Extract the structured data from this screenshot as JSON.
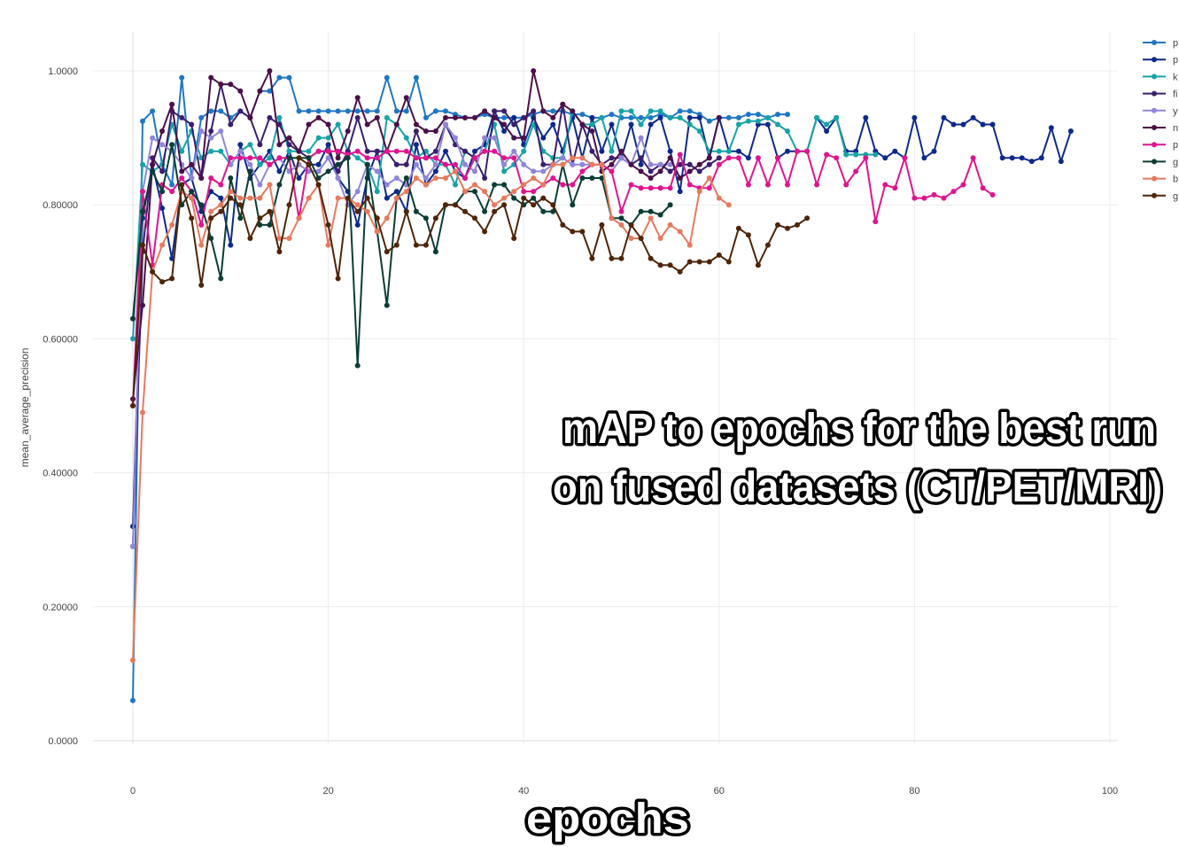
{
  "overlay": {
    "title_line1": "mAP to epochs for the best run",
    "title_line2": "on fused datasets (CT/PET/MRI)",
    "xlabel": "epochs"
  },
  "chart_data": {
    "type": "line",
    "xlabel": "epochs",
    "ylabel": "mean_average_precision",
    "xlim": [
      -4,
      100.5
    ],
    "ylim": [
      -0.06,
      1.06
    ],
    "x_ticks": [
      0,
      20,
      40,
      60,
      80,
      100
    ],
    "y_ticks": [
      0,
      0.2,
      0.4,
      0.6,
      0.8,
      1.0
    ],
    "y_tick_labels": [
      "0.0000",
      "0.20000",
      "0.40000",
      "0.60000",
      "0.80000",
      "1.0000"
    ],
    "grid": true,
    "legend_position": "top-right",
    "series": [
      {
        "name": "p",
        "color": "#1f77c4",
        "values": [
          0.06,
          0.925,
          0.94,
          0.86,
          0.83,
          0.99,
          0.84,
          0.93,
          0.94,
          0.94,
          0.93,
          0.94,
          0.93,
          0.97,
          0.97,
          0.99,
          0.99,
          0.94,
          0.94,
          0.94,
          0.94,
          0.94,
          0.94,
          0.94,
          0.94,
          0.94,
          0.99,
          0.94,
          0.94,
          0.99,
          0.93,
          0.94,
          0.94,
          0.935,
          0.93,
          0.93,
          0.935,
          0.93,
          0.93,
          0.93,
          0.93,
          0.935,
          0.94,
          0.94,
          0.94,
          0.935,
          0.935,
          0.93,
          0.93,
          0.935,
          0.93,
          0.93,
          0.93,
          0.93,
          0.935,
          0.93,
          0.94,
          0.94,
          0.935,
          0.925,
          0.93,
          0.93,
          0.93,
          0.935,
          0.935,
          0.93,
          0.935,
          0.935
        ]
      },
      {
        "name": "p",
        "color": "#0c2a8a",
        "values": [
          0.32,
          0.78,
          0.86,
          0.795,
          0.72,
          0.83,
          0.84,
          0.79,
          0.82,
          0.81,
          0.74,
          0.89,
          0.84,
          0.86,
          0.88,
          0.85,
          0.88,
          0.84,
          0.86,
          0.86,
          0.89,
          0.84,
          0.82,
          0.77,
          0.84,
          0.88,
          0.81,
          0.82,
          0.79,
          0.89,
          0.83,
          0.85,
          0.88,
          0.85,
          0.84,
          0.88,
          0.89,
          0.94,
          0.91,
          0.93,
          0.89,
          0.93,
          0.9,
          0.92,
          0.88,
          0.93,
          0.87,
          0.93,
          0.88,
          0.92,
          0.87,
          0.92,
          0.86,
          0.92,
          0.93,
          0.88,
          0.82,
          0.93,
          0.93,
          0.87,
          0.93,
          0.88,
          0.88,
          0.87,
          0.92,
          0.92,
          0.87,
          0.88,
          0.88,
          0.88,
          0.93,
          0.91,
          0.93,
          0.88,
          0.88,
          0.93,
          0.88,
          0.87,
          0.88,
          0.87,
          0.93,
          0.87,
          0.88,
          0.93,
          0.92,
          0.92,
          0.93,
          0.92,
          0.92,
          0.87,
          0.87,
          0.87,
          0.865,
          0.87,
          0.915,
          0.865,
          0.91
        ]
      },
      {
        "name": "k",
        "color": "#17a3a8",
        "values": [
          0.6,
          0.86,
          0.85,
          0.86,
          0.92,
          0.88,
          0.91,
          0.87,
          0.88,
          0.88,
          0.86,
          0.88,
          0.89,
          0.86,
          0.87,
          0.93,
          0.88,
          0.88,
          0.88,
          0.9,
          0.9,
          0.92,
          0.88,
          0.87,
          0.86,
          0.82,
          0.93,
          0.92,
          0.9,
          0.87,
          0.88,
          0.86,
          0.86,
          0.83,
          0.88,
          0.87,
          0.88,
          0.92,
          0.85,
          0.86,
          0.88,
          0.92,
          0.88,
          0.87,
          0.87,
          0.94,
          0.92,
          0.92,
          0.93,
          0.88,
          0.94,
          0.94,
          0.92,
          0.94,
          0.94,
          0.93,
          0.93,
          0.92,
          0.91,
          0.88,
          0.88,
          0.88,
          0.92,
          0.925,
          0.925,
          0.93,
          0.92,
          0.91,
          0.88,
          0.88,
          0.93,
          0.92,
          0.93,
          0.875,
          0.875,
          0.875,
          0.875
        ]
      },
      {
        "name": "fi",
        "color": "#3b1f6e",
        "values": [
          0.29,
          0.73,
          0.87,
          0.85,
          0.94,
          0.93,
          0.92,
          0.84,
          0.91,
          0.98,
          0.92,
          0.94,
          0.93,
          0.89,
          0.93,
          0.92,
          0.89,
          0.88,
          0.87,
          0.88,
          0.88,
          0.85,
          0.88,
          0.93,
          0.88,
          0.88,
          0.88,
          0.86,
          0.86,
          0.91,
          0.87,
          0.88,
          0.92,
          0.89,
          0.88,
          0.87,
          0.84,
          0.94,
          0.94,
          0.92,
          0.93,
          0.94,
          0.86,
          0.86,
          0.95,
          0.86,
          0.92,
          0.88,
          0.86,
          0.87,
          0.87,
          0.86,
          0.87,
          0.85,
          0.86,
          0.85,
          0.86,
          0.86,
          0.85,
          0.86,
          0.87
        ]
      },
      {
        "name": "y",
        "color": "#8f86d8",
        "values": [
          0.29,
          0.82,
          0.9,
          0.89,
          0.88,
          0.86,
          0.84,
          0.91,
          0.9,
          0.91,
          0.86,
          0.88,
          0.86,
          0.83,
          0.86,
          0.87,
          0.85,
          0.86,
          0.85,
          0.85,
          0.87,
          0.84,
          0.8,
          0.82,
          0.86,
          0.85,
          0.83,
          0.84,
          0.83,
          0.86,
          0.84,
          0.86,
          0.92,
          0.9,
          0.86,
          0.85,
          0.9,
          0.9,
          0.86,
          0.88,
          0.86,
          0.85,
          0.85,
          0.86,
          0.87,
          0.86,
          0.86,
          0.86,
          0.86,
          0.85,
          0.87,
          0.86,
          0.9,
          0.86,
          0.86,
          0.86
        ]
      },
      {
        "name": "n",
        "color": "#4c0f4a",
        "values": [
          0.51,
          0.65,
          0.86,
          0.91,
          0.95,
          0.85,
          0.86,
          0.84,
          0.99,
          0.98,
          0.98,
          0.97,
          0.93,
          0.97,
          1.0,
          0.89,
          0.9,
          0.88,
          0.92,
          0.93,
          0.92,
          0.87,
          0.91,
          0.96,
          0.92,
          0.93,
          0.88,
          0.92,
          0.96,
          0.92,
          0.91,
          0.91,
          0.93,
          0.93,
          0.93,
          0.93,
          0.94,
          0.93,
          0.92,
          0.9,
          0.9,
          1.0,
          0.94,
          0.93,
          0.95,
          0.94,
          0.92,
          0.91,
          0.85,
          0.86,
          0.88,
          0.86,
          0.85,
          0.84,
          0.85,
          0.87,
          0.84,
          0.85,
          0.86,
          0.87,
          0.93
        ]
      },
      {
        "name": "p",
        "color": "#e0148f",
        "values": [
          0.5,
          0.82,
          0.71,
          0.83,
          0.82,
          0.84,
          0.82,
          0.77,
          0.84,
          0.83,
          0.87,
          0.87,
          0.87,
          0.87,
          0.86,
          0.87,
          0.87,
          0.78,
          0.87,
          0.88,
          0.88,
          0.88,
          0.875,
          0.88,
          0.87,
          0.87,
          0.88,
          0.88,
          0.88,
          0.87,
          0.87,
          0.87,
          0.86,
          0.86,
          0.84,
          0.87,
          0.88,
          0.88,
          0.87,
          0.87,
          0.82,
          0.82,
          0.83,
          0.84,
          0.83,
          0.83,
          0.85,
          0.86,
          0.86,
          0.85,
          0.79,
          0.83,
          0.825,
          0.825,
          0.825,
          0.825,
          0.875,
          0.83,
          0.825,
          0.825,
          0.86,
          0.87,
          0.87,
          0.83,
          0.87,
          0.83,
          0.87,
          0.83,
          0.88,
          0.88,
          0.83,
          0.875,
          0.87,
          0.83,
          0.85,
          0.87,
          0.775,
          0.83,
          0.825,
          0.87,
          0.81,
          0.81,
          0.815,
          0.81,
          0.82,
          0.83,
          0.87,
          0.825,
          0.815
        ]
      },
      {
        "name": "g",
        "color": "#0b3d35",
        "values": [
          0.63,
          0.79,
          0.85,
          0.82,
          0.89,
          0.8,
          0.82,
          0.8,
          0.75,
          0.69,
          0.84,
          0.78,
          0.85,
          0.77,
          0.77,
          0.83,
          0.87,
          0.87,
          0.87,
          0.84,
          0.85,
          0.86,
          0.87,
          0.56,
          0.86,
          0.76,
          0.65,
          0.81,
          0.84,
          0.79,
          0.78,
          0.73,
          0.8,
          0.8,
          0.82,
          0.82,
          0.79,
          0.83,
          0.83,
          0.81,
          0.8,
          0.81,
          0.79,
          0.79,
          0.86,
          0.8,
          0.84,
          0.84,
          0.84,
          0.78,
          0.78,
          0.77,
          0.79,
          0.79,
          0.785,
          0.8
        ]
      },
      {
        "name": "b",
        "color": "#e77a5e",
        "values": [
          0.12,
          0.49,
          0.7,
          0.74,
          0.77,
          0.82,
          0.81,
          0.74,
          0.79,
          0.8,
          0.82,
          0.81,
          0.81,
          0.81,
          0.83,
          0.75,
          0.75,
          0.78,
          0.81,
          0.83,
          0.74,
          0.81,
          0.81,
          0.8,
          0.79,
          0.76,
          0.78,
          0.81,
          0.82,
          0.84,
          0.83,
          0.84,
          0.84,
          0.85,
          0.82,
          0.83,
          0.82,
          0.8,
          0.81,
          0.82,
          0.83,
          0.84,
          0.83,
          0.86,
          0.86,
          0.87,
          0.87,
          0.86,
          0.86,
          0.78,
          0.77,
          0.75,
          0.75,
          0.78,
          0.75,
          0.77,
          0.76,
          0.74,
          0.82,
          0.84,
          0.81,
          0.8
        ]
      },
      {
        "name": "g",
        "color": "#4f2509",
        "values": [
          0.5,
          0.74,
          0.7,
          0.685,
          0.69,
          0.83,
          0.78,
          0.68,
          0.78,
          0.79,
          0.81,
          0.8,
          0.75,
          0.78,
          0.79,
          0.73,
          0.8,
          0.87,
          0.86,
          0.83,
          0.77,
          0.69,
          0.81,
          0.79,
          0.81,
          0.78,
          0.73,
          0.74,
          0.79,
          0.74,
          0.74,
          0.78,
          0.8,
          0.8,
          0.79,
          0.78,
          0.76,
          0.79,
          0.8,
          0.75,
          0.81,
          0.8,
          0.81,
          0.8,
          0.77,
          0.76,
          0.76,
          0.72,
          0.77,
          0.72,
          0.72,
          0.77,
          0.75,
          0.72,
          0.71,
          0.71,
          0.7,
          0.715,
          0.715,
          0.715,
          0.725,
          0.715,
          0.765,
          0.755,
          0.71,
          0.74,
          0.77,
          0.765,
          0.77,
          0.78
        ]
      }
    ]
  }
}
